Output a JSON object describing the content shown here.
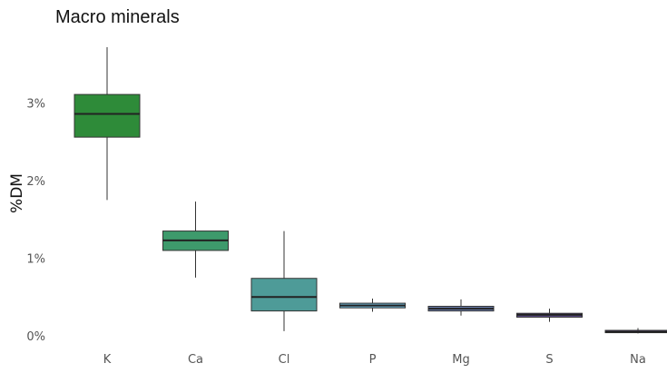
{
  "chart_data": {
    "type": "box",
    "title": "Macro minerals",
    "xlabel": "",
    "ylabel": "%DM",
    "ylim": [
      0,
      3.75
    ],
    "yticks": [
      0,
      1,
      2,
      3
    ],
    "ytick_labels": [
      "0%",
      "1%",
      "2%",
      "3%"
    ],
    "grid": false,
    "legend": "none",
    "categories": [
      "K",
      "Ca",
      "Cl",
      "P",
      "Mg",
      "S",
      "Na"
    ],
    "boxes": [
      {
        "label": "K",
        "min": 1.75,
        "q1": 2.56,
        "median": 2.86,
        "q3": 3.11,
        "max": 3.72,
        "color": "#2e8b39"
      },
      {
        "label": "Ca",
        "min": 0.75,
        "q1": 1.1,
        "median": 1.23,
        "q3": 1.35,
        "max": 1.73,
        "color": "#3e9a6c"
      },
      {
        "label": "Cl",
        "min": 0.06,
        "q1": 0.32,
        "median": 0.5,
        "q3": 0.74,
        "max": 1.35,
        "color": "#4e9b98"
      },
      {
        "label": "P",
        "min": 0.31,
        "q1": 0.36,
        "median": 0.39,
        "q3": 0.42,
        "max": 0.48,
        "color": "#6bb0cf"
      },
      {
        "label": "Mg",
        "min": 0.26,
        "q1": 0.32,
        "median": 0.35,
        "q3": 0.38,
        "max": 0.47,
        "color": "#6b7fb0"
      },
      {
        "label": "S",
        "min": 0.18,
        "q1": 0.24,
        "median": 0.27,
        "q3": 0.29,
        "max": 0.35,
        "color": "#5e4f8a"
      },
      {
        "label": "Na",
        "min": 0.03,
        "q1": 0.04,
        "median": 0.05,
        "q3": 0.07,
        "max": 0.1,
        "color": "#4a2f6e"
      }
    ]
  }
}
